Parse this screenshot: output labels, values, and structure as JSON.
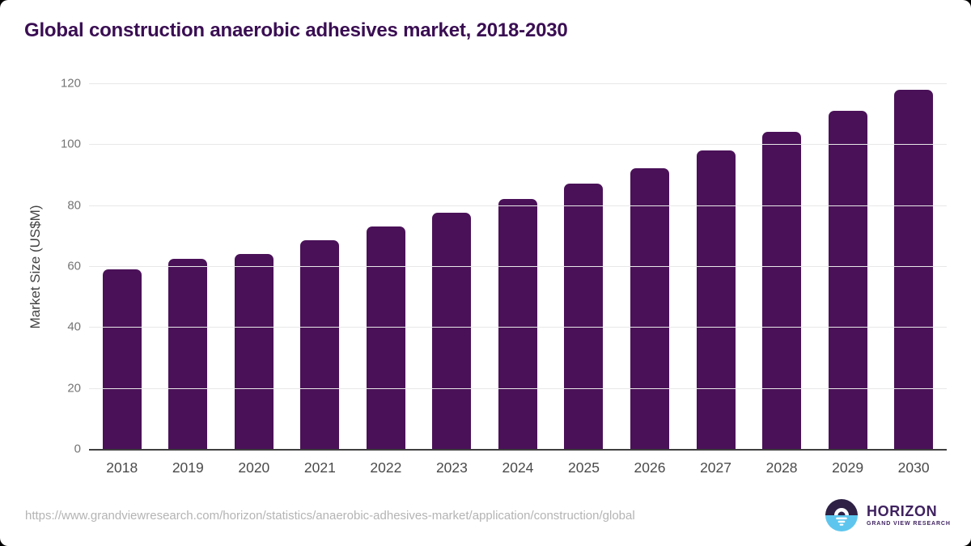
{
  "header": {
    "title": "Global construction anaerobic adhesives market, 2018-2030"
  },
  "chart_data": {
    "type": "bar",
    "title": "Global construction anaerobic adhesives market, 2018-2030",
    "categories": [
      "2018",
      "2019",
      "2020",
      "2021",
      "2022",
      "2023",
      "2024",
      "2025",
      "2026",
      "2027",
      "2028",
      "2029",
      "2030"
    ],
    "values": [
      59,
      62.5,
      64,
      68.5,
      73,
      77.5,
      82,
      87,
      92,
      98,
      104,
      111,
      118
    ],
    "xlabel": "",
    "ylabel": "Market Size (US$M)",
    "ylim": [
      0,
      120
    ],
    "yticks": [
      0,
      20,
      40,
      60,
      80,
      100,
      120
    ],
    "grid": true,
    "legend": false,
    "bar_color": "#4a1158",
    "gridline_color": "#e8e8e8",
    "axis_line_color": "#3f3f3f",
    "tick_label_color": "#757575",
    "x_label_color": "#4a4a4a",
    "title_color": "#3a0e53"
  },
  "footer": {
    "source_url": "https://www.grandviewresearch.com/horizon/statistics/anaerobic-adhesives-market/application/construction/global",
    "logo_title": "HORIZON",
    "logo_subtitle": "GRAND VIEW RESEARCH",
    "logo_dark_color": "#2e2145",
    "logo_blue_color": "#5ec6ee"
  }
}
